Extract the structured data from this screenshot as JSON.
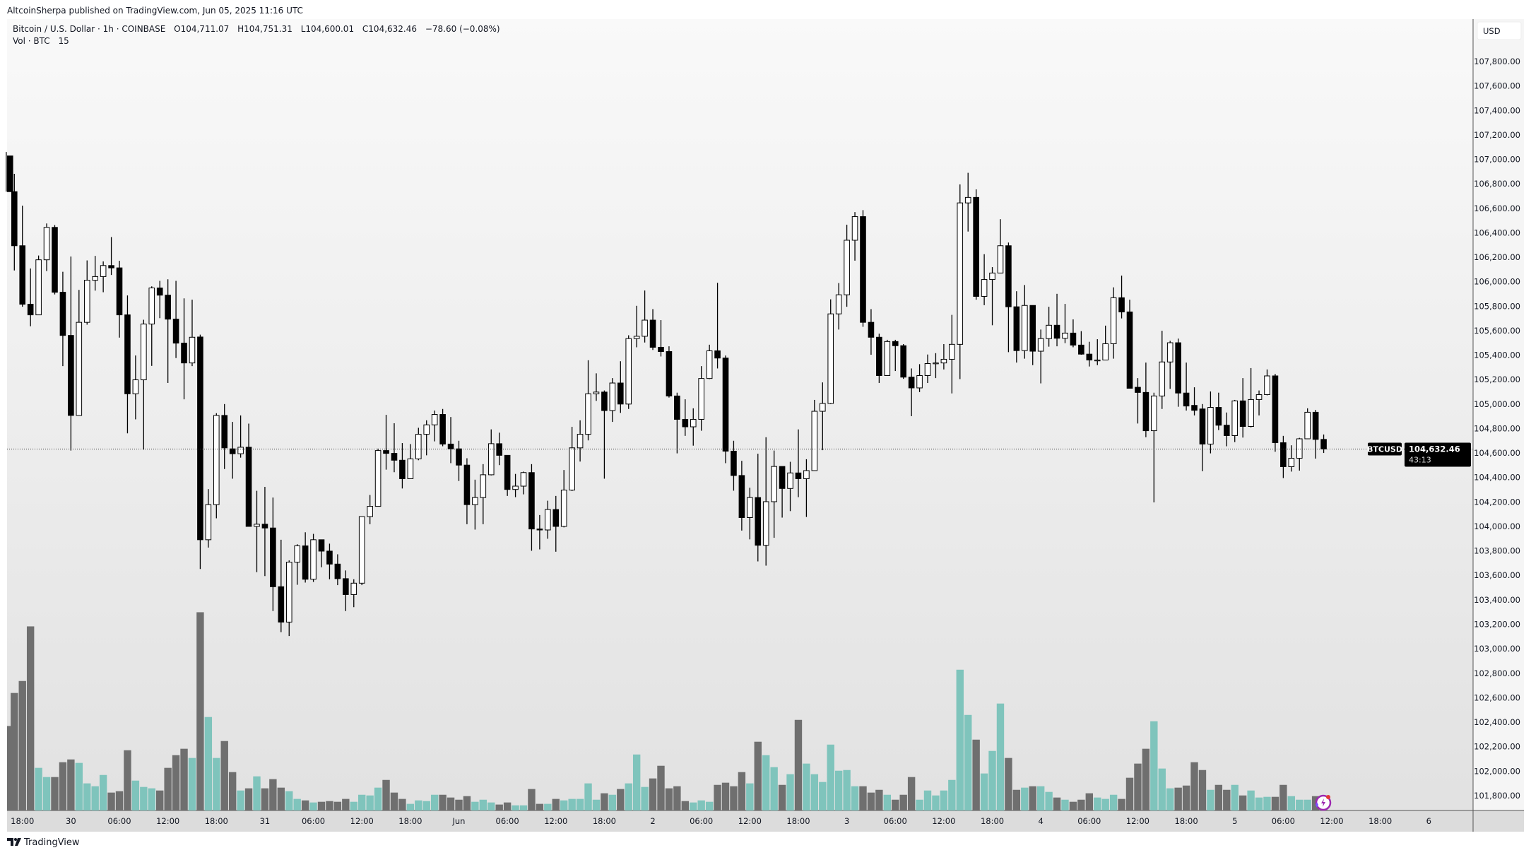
{
  "header": {
    "published": "AltcoinSherpa published on TradingView.com, Jun 05, 2025 11:16 UTC"
  },
  "legend": {
    "symbol": "Bitcoin / U.S. Dollar · 1h · COINBASE",
    "open": "O104,711.07",
    "high": "H104,751.31",
    "low": "L104,600.01",
    "close": "C104,632.46",
    "change": "−78.60 (−0.08%)",
    "volume_label": "Vol · BTC",
    "volume_value": "15"
  },
  "price_axis": {
    "currency": "USD"
  },
  "last_price": {
    "symbol_tag": "BTCUSD",
    "price": "104,632.46",
    "countdown": "43:13"
  },
  "footer": {
    "logo_text": "TradingView"
  },
  "colors": {
    "up_body": "#ffffff",
    "down_body": "#000000",
    "up_volume": "#7fc4bc",
    "down_volume": "#6f6f6f",
    "background_top": "#f9f9f9",
    "background_bottom": "#e1e1e1"
  },
  "chart_data": {
    "type": "candlestick",
    "interval": "1h",
    "symbol": "BTCUSD",
    "ylim": [
      101700,
      108000
    ],
    "y_ticks": [
      "107,800.00",
      "107,600.00",
      "107,400.00",
      "107,200.00",
      "107,000.00",
      "106,800.00",
      "106,600.00",
      "106,400.00",
      "106,200.00",
      "106,000.00",
      "105,800.00",
      "105,600.00",
      "105,400.00",
      "105,200.00",
      "105,000.00",
      "104,800.00",
      "104,600.00",
      "104,400.00",
      "104,200.00",
      "104,000.00",
      "103,800.00",
      "103,600.00",
      "103,400.00",
      "103,200.00",
      "103,000.00",
      "102,800.00",
      "102,600.00",
      "102,400.00",
      "102,200.00",
      "102,000.00",
      "101,800.00"
    ],
    "x_ticks": [
      "18:00",
      "30",
      "06:00",
      "12:00",
      "18:00",
      "31",
      "06:00",
      "12:00",
      "18:00",
      "Jun",
      "06:00",
      "12:00",
      "18:00",
      "2",
      "06:00",
      "12:00",
      "18:00",
      "3",
      "06:00",
      "12:00",
      "18:00",
      "4",
      "06:00",
      "12:00",
      "18:00",
      "5",
      "06:00",
      "12:00",
      "18:00",
      "6"
    ],
    "ohlc": [
      [
        107028,
        107060,
        106736,
        106736
      ],
      [
        106736,
        106882,
        106092,
        106294
      ],
      [
        106294,
        106622,
        105795,
        105816
      ],
      [
        105816,
        106108,
        105636,
        105729
      ],
      [
        105729,
        106214,
        105729,
        106179
      ],
      [
        106179,
        106476,
        106087,
        106444
      ],
      [
        106444,
        106463,
        105896,
        105914
      ],
      [
        105914,
        106081,
        105310,
        105561
      ],
      [
        105561,
        106206,
        104620,
        104907
      ],
      [
        104907,
        105933,
        104907,
        105668
      ],
      [
        105668,
        106174,
        105649,
        106012
      ],
      [
        106012,
        106211,
        105927,
        106042
      ],
      [
        106042,
        106166,
        105914,
        106132
      ],
      [
        106132,
        106365,
        106055,
        106113
      ],
      [
        106113,
        106171,
        105543,
        105729
      ],
      [
        105729,
        105888,
        104761,
        105084
      ],
      [
        105084,
        105397,
        104875,
        105198
      ],
      [
        105198,
        105689,
        104628,
        105654
      ],
      [
        105654,
        105962,
        105312,
        105949
      ],
      [
        105949,
        106007,
        105702,
        105890
      ],
      [
        105890,
        106020,
        105172,
        105694
      ],
      [
        105694,
        106007,
        105376,
        105498
      ],
      [
        105498,
        105864,
        105039,
        105336
      ],
      [
        105336,
        105853,
        105310,
        105546
      ],
      [
        105548,
        105567,
        103652,
        103891
      ],
      [
        103891,
        104305,
        103827,
        104178
      ],
      [
        104178,
        104925,
        104066,
        104907
      ],
      [
        104907,
        105000,
        104469,
        104642
      ],
      [
        104634,
        104854,
        104390,
        104594
      ],
      [
        104594,
        104907,
        104562,
        104647
      ],
      [
        104647,
        104840,
        104000,
        104000
      ],
      [
        104000,
        104291,
        103626,
        104018
      ],
      [
        104018,
        104323,
        103594,
        103987
      ],
      [
        103987,
        104236,
        103308,
        103507
      ],
      [
        103507,
        103891,
        103136,
        103218
      ],
      [
        103218,
        103722,
        103104,
        103708
      ],
      [
        103708,
        103854,
        103523,
        103841
      ],
      [
        103841,
        103952,
        103541,
        103568
      ],
      [
        103568,
        103939,
        103546,
        103891
      ],
      [
        103891,
        103891,
        103666,
        103798
      ],
      [
        103798,
        103859,
        103568,
        103692
      ],
      [
        103692,
        103772,
        103520,
        103573
      ],
      [
        103573,
        103640,
        103308,
        103443
      ],
      [
        103443,
        103568,
        103340,
        103536
      ],
      [
        103536,
        104080,
        103520,
        104080
      ],
      [
        104080,
        104257,
        104018,
        104164
      ],
      [
        104164,
        104636,
        104164,
        104620
      ],
      [
        104620,
        104912,
        104464,
        104597
      ],
      [
        104597,
        104843,
        104443,
        104541
      ],
      [
        104541,
        104681,
        104310,
        104390
      ],
      [
        104390,
        104673,
        104390,
        104552
      ],
      [
        104552,
        104806,
        104541,
        104753
      ],
      [
        104753,
        104867,
        104581,
        104830
      ],
      [
        104830,
        104947,
        104695,
        104915
      ],
      [
        104915,
        104960,
        104655,
        104673
      ],
      [
        104673,
        104894,
        104517,
        104634
      ],
      [
        104634,
        104700,
        104371,
        104501
      ],
      [
        104501,
        104557,
        104018,
        104178
      ],
      [
        104178,
        104382,
        103974,
        104236
      ],
      [
        104236,
        104509,
        104018,
        104422
      ],
      [
        104422,
        104793,
        104417,
        104676
      ],
      [
        104676,
        104766,
        104501,
        104581
      ],
      [
        104581,
        104581,
        104249,
        104302
      ],
      [
        104302,
        104429,
        104239,
        104329
      ],
      [
        104329,
        104448,
        104262,
        104440
      ],
      [
        104440,
        104509,
        103801,
        103979
      ],
      [
        103979,
        104093,
        103812,
        103971
      ],
      [
        103971,
        104210,
        103899,
        104138
      ],
      [
        104138,
        104249,
        103793,
        104000
      ],
      [
        104000,
        104461,
        103992,
        104297
      ],
      [
        104297,
        104814,
        104289,
        104642
      ],
      [
        104642,
        104867,
        104530,
        104753
      ],
      [
        104753,
        105358,
        104703,
        105084
      ],
      [
        105084,
        105251,
        105026,
        105098
      ],
      [
        105098,
        105111,
        104390,
        104947
      ],
      [
        104947,
        105212,
        104854,
        105172
      ],
      [
        105172,
        105350,
        104928,
        105000
      ],
      [
        105000,
        105562,
        104960,
        105535
      ],
      [
        105535,
        105803,
        105464,
        105554
      ],
      [
        105554,
        105928,
        105503,
        105686
      ],
      [
        105686,
        105776,
        105442,
        105464
      ],
      [
        105464,
        105686,
        105389,
        105429
      ],
      [
        105429,
        105472,
        105053,
        105066
      ],
      [
        105066,
        105093,
        104597,
        104875
      ],
      [
        104875,
        105039,
        104740,
        104814
      ],
      [
        104814,
        104965,
        104660,
        104875
      ],
      [
        104875,
        105310,
        104782,
        105209
      ],
      [
        105209,
        105485,
        105204,
        105435
      ],
      [
        105435,
        105991,
        105291,
        105376
      ],
      [
        105376,
        105397,
        104517,
        104615
      ],
      [
        104615,
        104700,
        104292,
        104416
      ],
      [
        104416,
        104536,
        103966,
        104072
      ],
      [
        104072,
        104316,
        103894,
        104236
      ],
      [
        104236,
        104594,
        103714,
        103846
      ],
      [
        103846,
        104729,
        103679,
        104202
      ],
      [
        104202,
        104620,
        103907,
        104490
      ],
      [
        104490,
        104490,
        104072,
        104310
      ],
      [
        104310,
        104528,
        104125,
        104437
      ],
      [
        104437,
        104793,
        104239,
        104390
      ],
      [
        104390,
        104549,
        104077,
        104456
      ],
      [
        104456,
        105034,
        104456,
        104941
      ],
      [
        104941,
        105177,
        104623,
        105005
      ],
      [
        105005,
        105856,
        105000,
        105737
      ],
      [
        105737,
        105989,
        105609,
        105893
      ],
      [
        105893,
        106466,
        105795,
        106339
      ],
      [
        106339,
        106569,
        106172,
        106532
      ],
      [
        106532,
        106585,
        105631,
        105668
      ],
      [
        105668,
        105776,
        105403,
        105546
      ],
      [
        105546,
        105575,
        105172,
        105233
      ],
      [
        105233,
        105525,
        105233,
        105511
      ],
      [
        105511,
        105525,
        105270,
        105477
      ],
      [
        105477,
        105490,
        105206,
        105220
      ],
      [
        105220,
        105291,
        104901,
        105132
      ],
      [
        105132,
        105326,
        105098,
        105233
      ],
      [
        105233,
        105405,
        105172,
        105331
      ],
      [
        105331,
        105416,
        105212,
        105336
      ],
      [
        105336,
        105490,
        105283,
        105366
      ],
      [
        105366,
        105729,
        105087,
        105488
      ],
      [
        105488,
        106795,
        105204,
        106644
      ],
      [
        106644,
        106890,
        106410,
        106689
      ],
      [
        106689,
        106755,
        105853,
        105880
      ],
      [
        105880,
        106225,
        105808,
        106018
      ],
      [
        106018,
        106119,
        105644,
        106071
      ],
      [
        106071,
        106511,
        106071,
        106294
      ],
      [
        106294,
        106320,
        105424,
        105795
      ],
      [
        105795,
        105922,
        105339,
        105437
      ],
      [
        105437,
        105973,
        105371,
        105806
      ],
      [
        105806,
        105806,
        105318,
        105432
      ],
      [
        105432,
        105609,
        105169,
        105535
      ],
      [
        105535,
        105795,
        105469,
        105644
      ],
      [
        105644,
        105901,
        105472,
        105538
      ],
      [
        105538,
        105819,
        105498,
        105580
      ],
      [
        105580,
        105692,
        105464,
        105482
      ],
      [
        105482,
        105596,
        105403,
        105408
      ],
      [
        105408,
        105509,
        105307,
        105360
      ],
      [
        105360,
        105530,
        105318,
        105360
      ],
      [
        105360,
        105641,
        105360,
        105493
      ],
      [
        105493,
        105954,
        105371,
        105869
      ],
      [
        105869,
        106050,
        105700,
        105753
      ],
      [
        105753,
        105853,
        105129,
        105129
      ],
      [
        105137,
        105212,
        104841,
        105095
      ],
      [
        105095,
        105339,
        104729,
        104782
      ],
      [
        104782,
        105093,
        104196,
        105066
      ],
      [
        105066,
        105599,
        104960,
        105344
      ],
      [
        105344,
        105517,
        105124,
        105501
      ],
      [
        105501,
        105535,
        104978,
        105090
      ],
      [
        105090,
        105339,
        104947,
        104984
      ],
      [
        104989,
        105137,
        104907,
        104949
      ],
      [
        104960,
        105000,
        104451,
        104673
      ],
      [
        104673,
        105103,
        104597,
        104973
      ],
      [
        104973,
        105093,
        104787,
        104827
      ],
      [
        104827,
        104931,
        104655,
        104742
      ],
      [
        104742,
        105034,
        104689,
        105026
      ],
      [
        105026,
        105212,
        104726,
        104817
      ],
      [
        104817,
        105294,
        104809,
        105037
      ],
      [
        105037,
        105111,
        104907,
        105077
      ],
      [
        105077,
        105283,
        105071,
        105230
      ],
      [
        105230,
        105246,
        104610,
        104684
      ],
      [
        104684,
        104740,
        104395,
        104488
      ],
      [
        104488,
        104663,
        104448,
        104557
      ],
      [
        104557,
        104724,
        104456,
        104716
      ],
      [
        104716,
        104965,
        104716,
        104933
      ],
      [
        104933,
        104952,
        104554,
        104711
      ],
      [
        104711.07,
        104751.31,
        104600.01,
        104632.46
      ]
    ],
    "volume": [
      85.4,
      118.8,
      130.9,
      186.1,
      43.1,
      33.8,
      33.8,
      48.8,
      51.6,
      48.1,
      27.4,
      24.5,
      35.9,
      18.1,
      19.5,
      60.9,
      30.2,
      23.8,
      22.4,
      20.2,
      43.1,
      55.9,
      62.4,
      53.1,
      200.4,
      94.5,
      53.1,
      70.2,
      38.8,
      20.2,
      22.4,
      34.5,
      22.4,
      31.7,
      23.1,
      19.5,
      11.7,
      10.2,
      8.1,
      8.8,
      9.5,
      8.8,
      11.7,
      8.8,
      15.9,
      15.2,
      23.1,
      30.9,
      18.1,
      11.7,
      6.7,
      10.2,
      9.5,
      15.9,
      15.9,
      13.1,
      10.9,
      14.5,
      8.8,
      10.9,
      8.1,
      6.0,
      8.1,
      5.2,
      5.2,
      21.7,
      6.7,
      6.7,
      11.7,
      10.2,
      11.7,
      11.7,
      27.4,
      10.9,
      17.4,
      15.9,
      21.7,
      27.4,
      56.6,
      23.8,
      32.4,
      45.2,
      22.4,
      24.5,
      9.5,
      8.1,
      10.2,
      8.8,
      25.9,
      28.1,
      24.5,
      38.8,
      27.4,
      69.5,
      55.9,
      43.8,
      25.9,
      36.7,
      91.6,
      47.4,
      36.7,
      28.8,
      66.6,
      40.2,
      40.9,
      24.5,
      24.5,
      18.1,
      20.9,
      15.9,
      10.9,
      15.9,
      33.8,
      10.9,
      20.2,
      15.2,
      20.2,
      30.9,
      142.3,
      96.6,
      71.6,
      37.4,
      60.2,
      108.1,
      53.1,
      20.9,
      23.1,
      24.5,
      24.5,
      18.8,
      13.1,
      10.9,
      8.8,
      10.9,
      17.4,
      13.1,
      11.7,
      15.9,
      11.7,
      33.1,
      47.4,
      62.4,
      90.2,
      42.4,
      22.4,
      23.1,
      25.2,
      48.8,
      40.9,
      20.9,
      25.9,
      20.9,
      25.9,
      15.2,
      20.2,
      13.1,
      13.8,
      13.8,
      25.9,
      14.5,
      10.9,
      10.9,
      14.5,
      15
    ],
    "last_price": 104632.46
  }
}
